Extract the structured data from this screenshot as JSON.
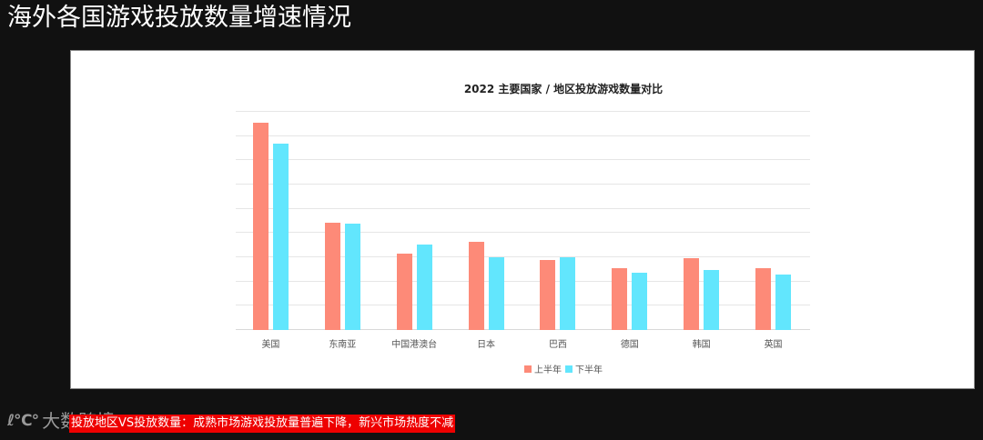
{
  "slide": {
    "title": "海外各国游戏投放数量增速情况",
    "caption": "投放地区VS投放数量：成熟市场游戏投放量普遍下降，新兴市场热度不减",
    "watermark": {
      "logo": "ℓ℃°",
      "text": "大数跨境"
    }
  },
  "colors": {
    "series_h1": "#fd8a78",
    "series_h2": "#62e6fd"
  },
  "chart_data": {
    "type": "bar",
    "title": "2022 主要国家 / 地区投放游戏数量对比",
    "xlabel": "",
    "ylabel": "",
    "y_axis_labels_visible": false,
    "y_unit": "gridline intervals (no numeric ticks shown)",
    "ylim": [
      0,
      9
    ],
    "grid": true,
    "gridline_count": 10,
    "legend_position": "bottom",
    "categories": [
      "美国",
      "东南亚",
      "中国港澳台",
      "日本",
      "巴西",
      "德国",
      "韩国",
      "英国"
    ],
    "series": [
      {
        "name": "上半年",
        "color": "#fd8a78",
        "values": [
          8.55,
          4.42,
          3.15,
          3.63,
          2.88,
          2.55,
          2.96,
          2.55
        ]
      },
      {
        "name": "下半年",
        "color": "#62e6fd",
        "values": [
          7.68,
          4.38,
          3.52,
          3.0,
          3.0,
          2.36,
          2.47,
          2.28
        ]
      }
    ]
  }
}
